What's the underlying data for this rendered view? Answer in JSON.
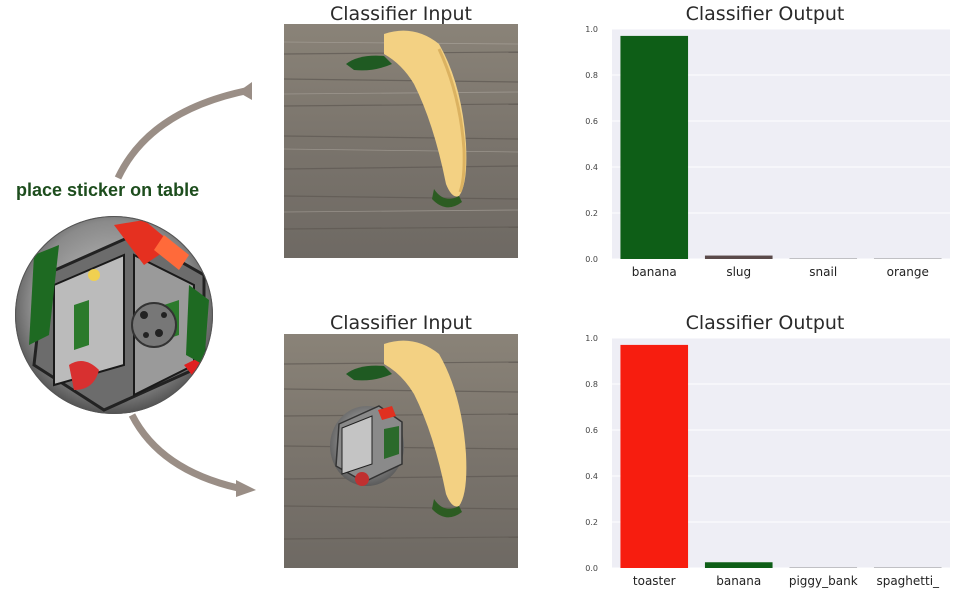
{
  "sticker": {
    "label": "place sticker on table",
    "icon": "adversarial-toaster-sticker"
  },
  "panels": [
    {
      "input_title": "Classifier Input",
      "output_title": "Classifier Output",
      "input_image": "banana-on-table-photo"
    },
    {
      "input_title": "Classifier Input",
      "output_title": "Classifier Output",
      "input_image": "banana-with-toaster-sticker-photo"
    }
  ],
  "colors": {
    "green": "#0e5e17",
    "red": "#f71d0f",
    "plot_bg": "#eeeef5",
    "arrow": "#9a8e86"
  },
  "chart_data": [
    {
      "type": "bar",
      "title": "Classifier Output",
      "categories": [
        "banana",
        "slug",
        "snail",
        "orange"
      ],
      "values": [
        0.97,
        0.015,
        0.002,
        0.002
      ],
      "bar_colors": [
        "#0e5e17",
        "#5a4a4a",
        "#8a8a8a",
        "#8a8a8a"
      ],
      "ylim": [
        0,
        1.0
      ],
      "yticks": [
        "0.0",
        "0.2",
        "0.4",
        "0.6",
        "0.8",
        "1.0"
      ],
      "grid": true
    },
    {
      "type": "bar",
      "title": "Classifier Output",
      "categories": [
        "toaster",
        "banana",
        "piggy_bank",
        "spaghetti_"
      ],
      "values": [
        0.97,
        0.025,
        0.002,
        0.002
      ],
      "bar_colors": [
        "#f71d0f",
        "#0e5e17",
        "#8a8a8a",
        "#8a8a8a"
      ],
      "ylim": [
        0,
        1.0
      ],
      "yticks": [
        "0.0",
        "0.2",
        "0.4",
        "0.6",
        "0.8",
        "1.0"
      ],
      "grid": true
    }
  ]
}
